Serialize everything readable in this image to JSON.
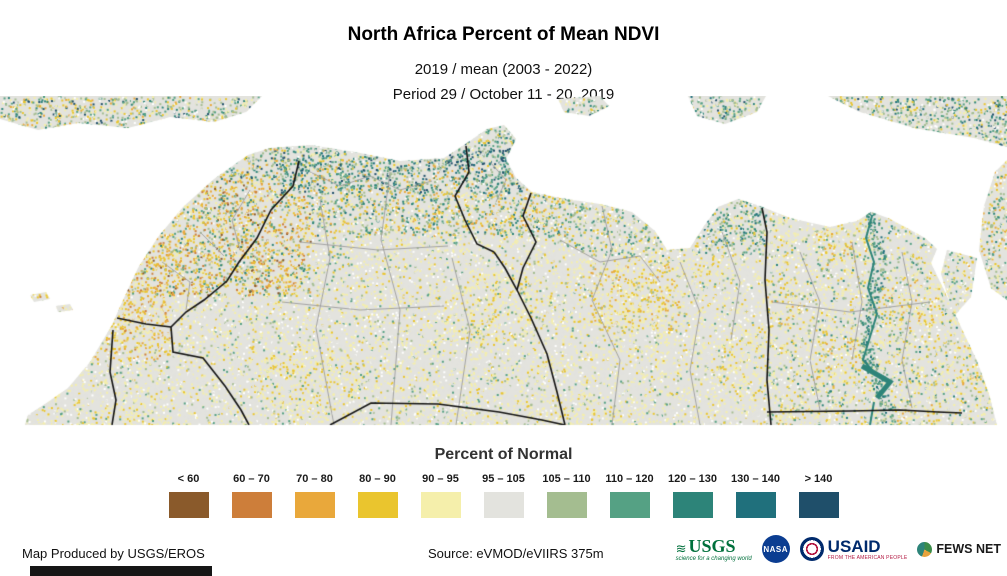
{
  "header": {
    "title": "North Africa Percent of Mean NDVI",
    "subtitle_line1": "2019 / mean (2003 - 2022)",
    "subtitle_line2": "Period 29 / October 11 - 20, 2019"
  },
  "legend": {
    "title": "Percent of Normal",
    "classes": [
      {
        "label": "< 60",
        "color": "#8a5a2b"
      },
      {
        "label": "60 – 70",
        "color": "#cd7e3a"
      },
      {
        "label": "70 – 80",
        "color": "#e9a83b"
      },
      {
        "label": "80 – 90",
        "color": "#eac52e"
      },
      {
        "label": "90 – 95",
        "color": "#f5efab"
      },
      {
        "label": "95 – 105",
        "color": "#e3e3de"
      },
      {
        "label": "105 – 110",
        "color": "#a4bd90"
      },
      {
        "label": "110 – 120",
        "color": "#55a184"
      },
      {
        "label": "120 – 130",
        "color": "#2d8479"
      },
      {
        "label": "130 – 140",
        "color": "#20707c"
      },
      {
        "label": "> 140",
        "color": "#1f4f6a"
      }
    ]
  },
  "map": {
    "region": "North Africa",
    "sea_color": "#ffffff",
    "border_color": "#111111",
    "admin_border_color": "#9b9b9b"
  },
  "footer": {
    "credit": "Map Produced by USGS/EROS",
    "source": "Source: eVMOD/eVIIRS 375m",
    "logos": {
      "usgs": {
        "name": "USGS",
        "tagline": "science for a changing world"
      },
      "nasa": {
        "name": "NASA"
      },
      "usaid": {
        "name": "USAID",
        "tagline": "FROM THE AMERICAN PEOPLE"
      },
      "fewsnet": {
        "name": "FEWS NET"
      }
    }
  }
}
